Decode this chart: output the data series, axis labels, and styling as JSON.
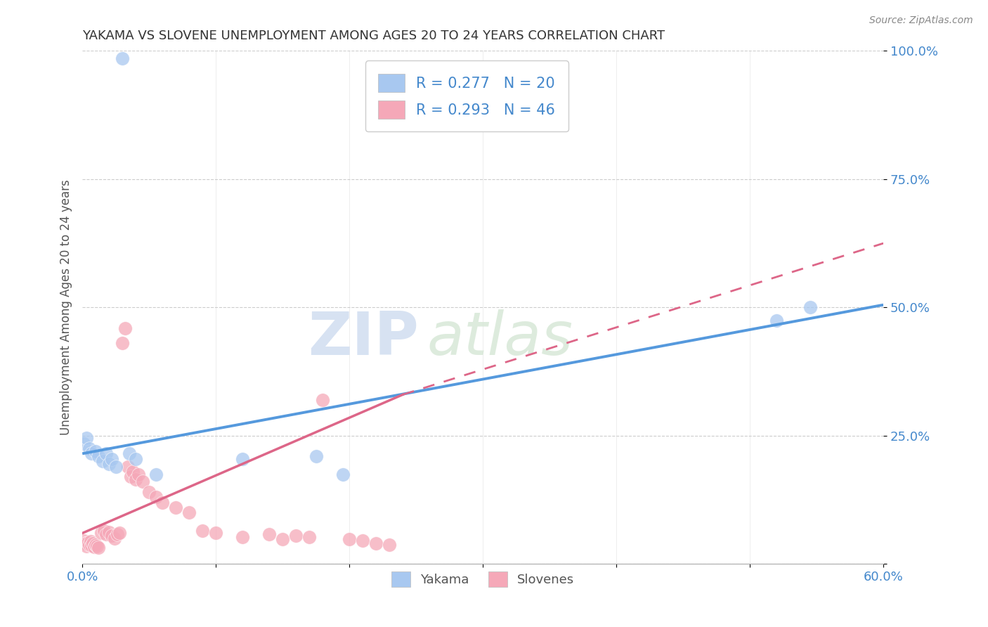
{
  "title": "YAKAMA VS SLOVENE UNEMPLOYMENT AMONG AGES 20 TO 24 YEARS CORRELATION CHART",
  "source": "Source: ZipAtlas.com",
  "ylabel": "Unemployment Among Ages 20 to 24 years",
  "xlim": [
    0.0,
    0.6
  ],
  "ylim": [
    0.0,
    1.0
  ],
  "yakama_color": "#a8c8f0",
  "slovene_color": "#f5a8b8",
  "yakama_line_color": "#5599dd",
  "slovene_line_color": "#dd6688",
  "watermark_zip": "ZIP",
  "watermark_atlas": "atlas",
  "yakama_points": [
    [
      0.03,
      0.985
    ],
    [
      0.001,
      0.235
    ],
    [
      0.003,
      0.245
    ],
    [
      0.005,
      0.225
    ],
    [
      0.007,
      0.215
    ],
    [
      0.01,
      0.22
    ],
    [
      0.012,
      0.21
    ],
    [
      0.015,
      0.2
    ],
    [
      0.018,
      0.215
    ],
    [
      0.02,
      0.195
    ],
    [
      0.022,
      0.205
    ],
    [
      0.025,
      0.19
    ],
    [
      0.035,
      0.215
    ],
    [
      0.04,
      0.205
    ],
    [
      0.055,
      0.175
    ],
    [
      0.12,
      0.205
    ],
    [
      0.175,
      0.21
    ],
    [
      0.195,
      0.175
    ],
    [
      0.52,
      0.475
    ],
    [
      0.545,
      0.5
    ]
  ],
  "slovene_points": [
    [
      0.001,
      0.045
    ],
    [
      0.002,
      0.04
    ],
    [
      0.003,
      0.035
    ],
    [
      0.004,
      0.042
    ],
    [
      0.005,
      0.038
    ],
    [
      0.006,
      0.044
    ],
    [
      0.007,
      0.036
    ],
    [
      0.008,
      0.04
    ],
    [
      0.009,
      0.033
    ],
    [
      0.01,
      0.038
    ],
    [
      0.011,
      0.035
    ],
    [
      0.012,
      0.032
    ],
    [
      0.014,
      0.06
    ],
    [
      0.016,
      0.065
    ],
    [
      0.018,
      0.058
    ],
    [
      0.02,
      0.062
    ],
    [
      0.022,
      0.055
    ],
    [
      0.024,
      0.05
    ],
    [
      0.026,
      0.058
    ],
    [
      0.028,
      0.06
    ],
    [
      0.03,
      0.43
    ],
    [
      0.032,
      0.46
    ],
    [
      0.034,
      0.19
    ],
    [
      0.036,
      0.17
    ],
    [
      0.038,
      0.18
    ],
    [
      0.04,
      0.165
    ],
    [
      0.042,
      0.175
    ],
    [
      0.045,
      0.16
    ],
    [
      0.05,
      0.14
    ],
    [
      0.055,
      0.13
    ],
    [
      0.06,
      0.12
    ],
    [
      0.07,
      0.11
    ],
    [
      0.08,
      0.1
    ],
    [
      0.09,
      0.065
    ],
    [
      0.1,
      0.06
    ],
    [
      0.12,
      0.052
    ],
    [
      0.14,
      0.058
    ],
    [
      0.15,
      0.048
    ],
    [
      0.16,
      0.055
    ],
    [
      0.17,
      0.052
    ],
    [
      0.18,
      0.32
    ],
    [
      0.2,
      0.048
    ],
    [
      0.21,
      0.045
    ],
    [
      0.22,
      0.04
    ],
    [
      0.23,
      0.038
    ]
  ],
  "yakama_trend": [
    0.0,
    0.6,
    0.22,
    0.5
  ],
  "slovene_trend_solid": [
    0.0,
    0.24,
    0.1,
    0.33
  ],
  "slovene_trend_dashed": [
    0.24,
    0.6,
    0.33,
    0.62
  ]
}
